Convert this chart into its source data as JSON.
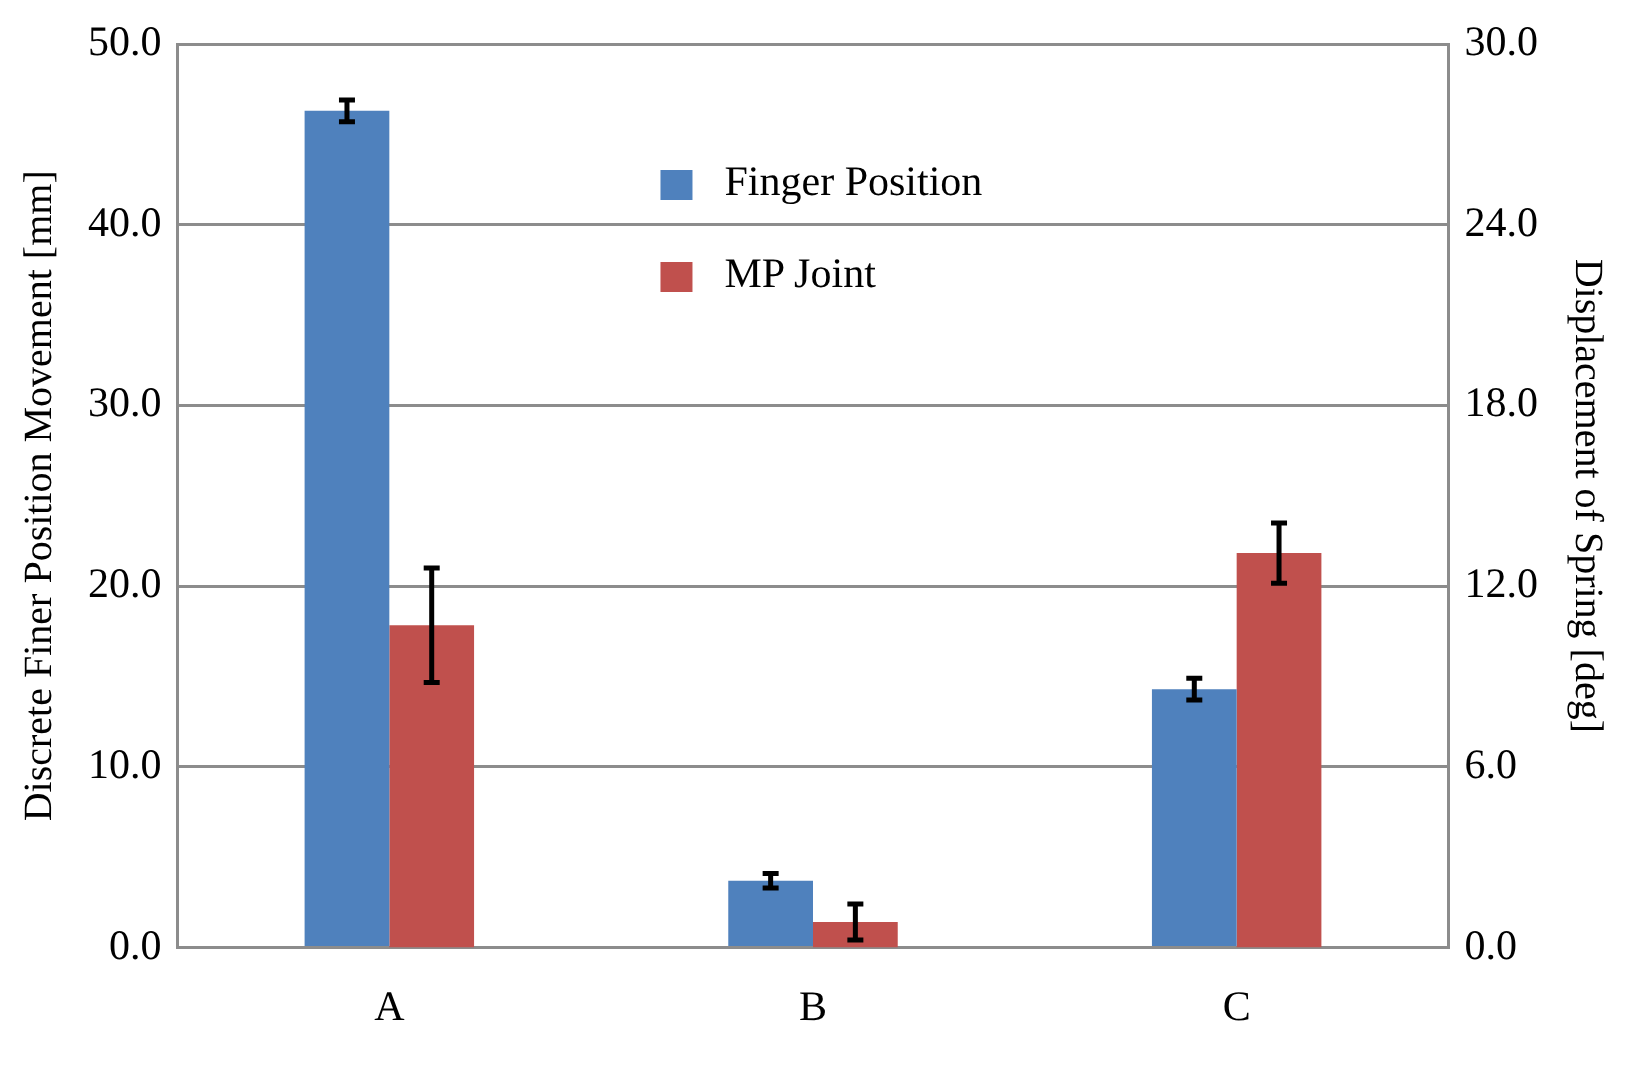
{
  "chart_data": {
    "type": "bar",
    "ylabel": "Discrete Finer Position Movement [mm]",
    "y2label": "Displacement of Spring [deg]",
    "categories": [
      "A",
      "B",
      "C"
    ],
    "series": [
      {
        "name": "Finger Position",
        "color": "#4f81bd",
        "values": [
          46.3,
          3.7,
          14.3
        ],
        "errors": [
          0.6,
          0.4,
          0.6
        ]
      },
      {
        "name": "MP Joint",
        "color": "#c0504d",
        "axis": "y2",
        "values": [
          10.7,
          0.85,
          13.1
        ],
        "errors": [
          1.9,
          0.6,
          1.0
        ]
      }
    ],
    "ylim": [
      0,
      50
    ],
    "yticks": [
      {
        "value": 0,
        "label": "0.0"
      },
      {
        "value": 10,
        "label": "10.0"
      },
      {
        "value": 20,
        "label": "20.0"
      },
      {
        "value": 30,
        "label": "30.0"
      },
      {
        "value": 40,
        "label": "40.0"
      },
      {
        "value": 50,
        "label": "50.0"
      }
    ],
    "y2lim": [
      0,
      30
    ],
    "y2ticks": [
      {
        "value": 0,
        "label": "0.0"
      },
      {
        "value": 6,
        "label": "6.0"
      },
      {
        "value": 12,
        "label": "12.0"
      },
      {
        "value": 18,
        "label": "18.0"
      },
      {
        "value": 24,
        "label": "24.0"
      },
      {
        "value": 30,
        "label": "30.0"
      }
    ],
    "grid": "y",
    "legend": "top"
  }
}
